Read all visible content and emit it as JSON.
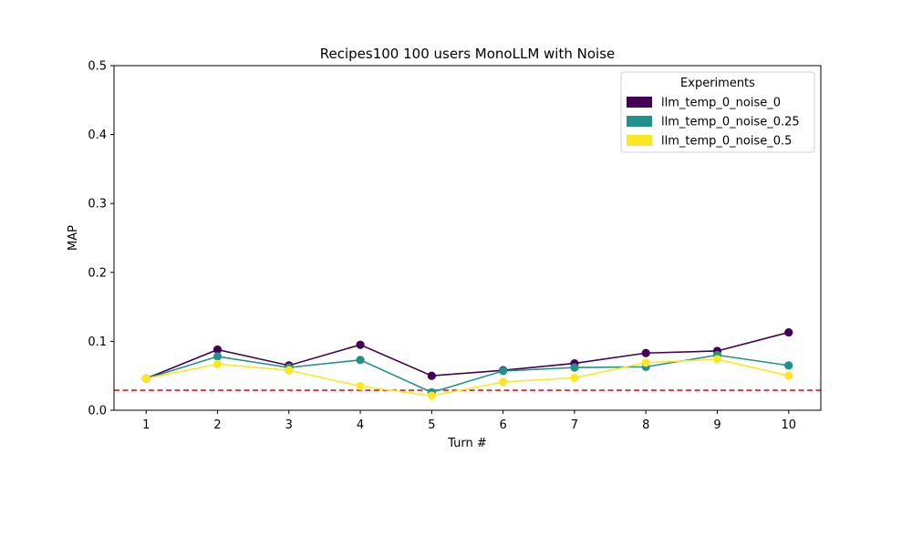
{
  "chart_data": {
    "type": "line",
    "title": "Recipes100 100 users MonoLLM with Noise",
    "xlabel": "Turn #",
    "ylabel": "MAP",
    "x": [
      1,
      2,
      3,
      4,
      5,
      6,
      7,
      8,
      9,
      10
    ],
    "xticks": [
      "1",
      "2",
      "3",
      "4",
      "5",
      "6",
      "7",
      "8",
      "9",
      "10"
    ],
    "yticks": [
      "0.0",
      "0.1",
      "0.2",
      "0.3",
      "0.4",
      "0.5"
    ],
    "xlim": [
      0.55,
      10.45
    ],
    "ylim": [
      0,
      0.5
    ],
    "grid": false,
    "legend": {
      "title": "Experiments",
      "placement": "top-right"
    },
    "baseline": {
      "value": 0.029,
      "color": "#e41a1c",
      "style": "dashed"
    },
    "series": [
      {
        "name": "llm_temp_0_noise_0",
        "color": "#440154",
        "values": [
          0.046,
          0.088,
          0.065,
          0.095,
          0.05,
          0.058,
          0.068,
          0.083,
          0.086,
          0.113
        ]
      },
      {
        "name": "llm_temp_0_noise_0.25",
        "color": "#21918c",
        "values": [
          0.046,
          0.078,
          0.062,
          0.073,
          0.026,
          0.057,
          0.062,
          0.063,
          0.08,
          0.065
        ]
      },
      {
        "name": "llm_temp_0_noise_0.5",
        "color": "#fde725",
        "values": [
          0.046,
          0.067,
          0.058,
          0.035,
          0.021,
          0.041,
          0.047,
          0.069,
          0.074,
          0.05
        ]
      }
    ]
  }
}
